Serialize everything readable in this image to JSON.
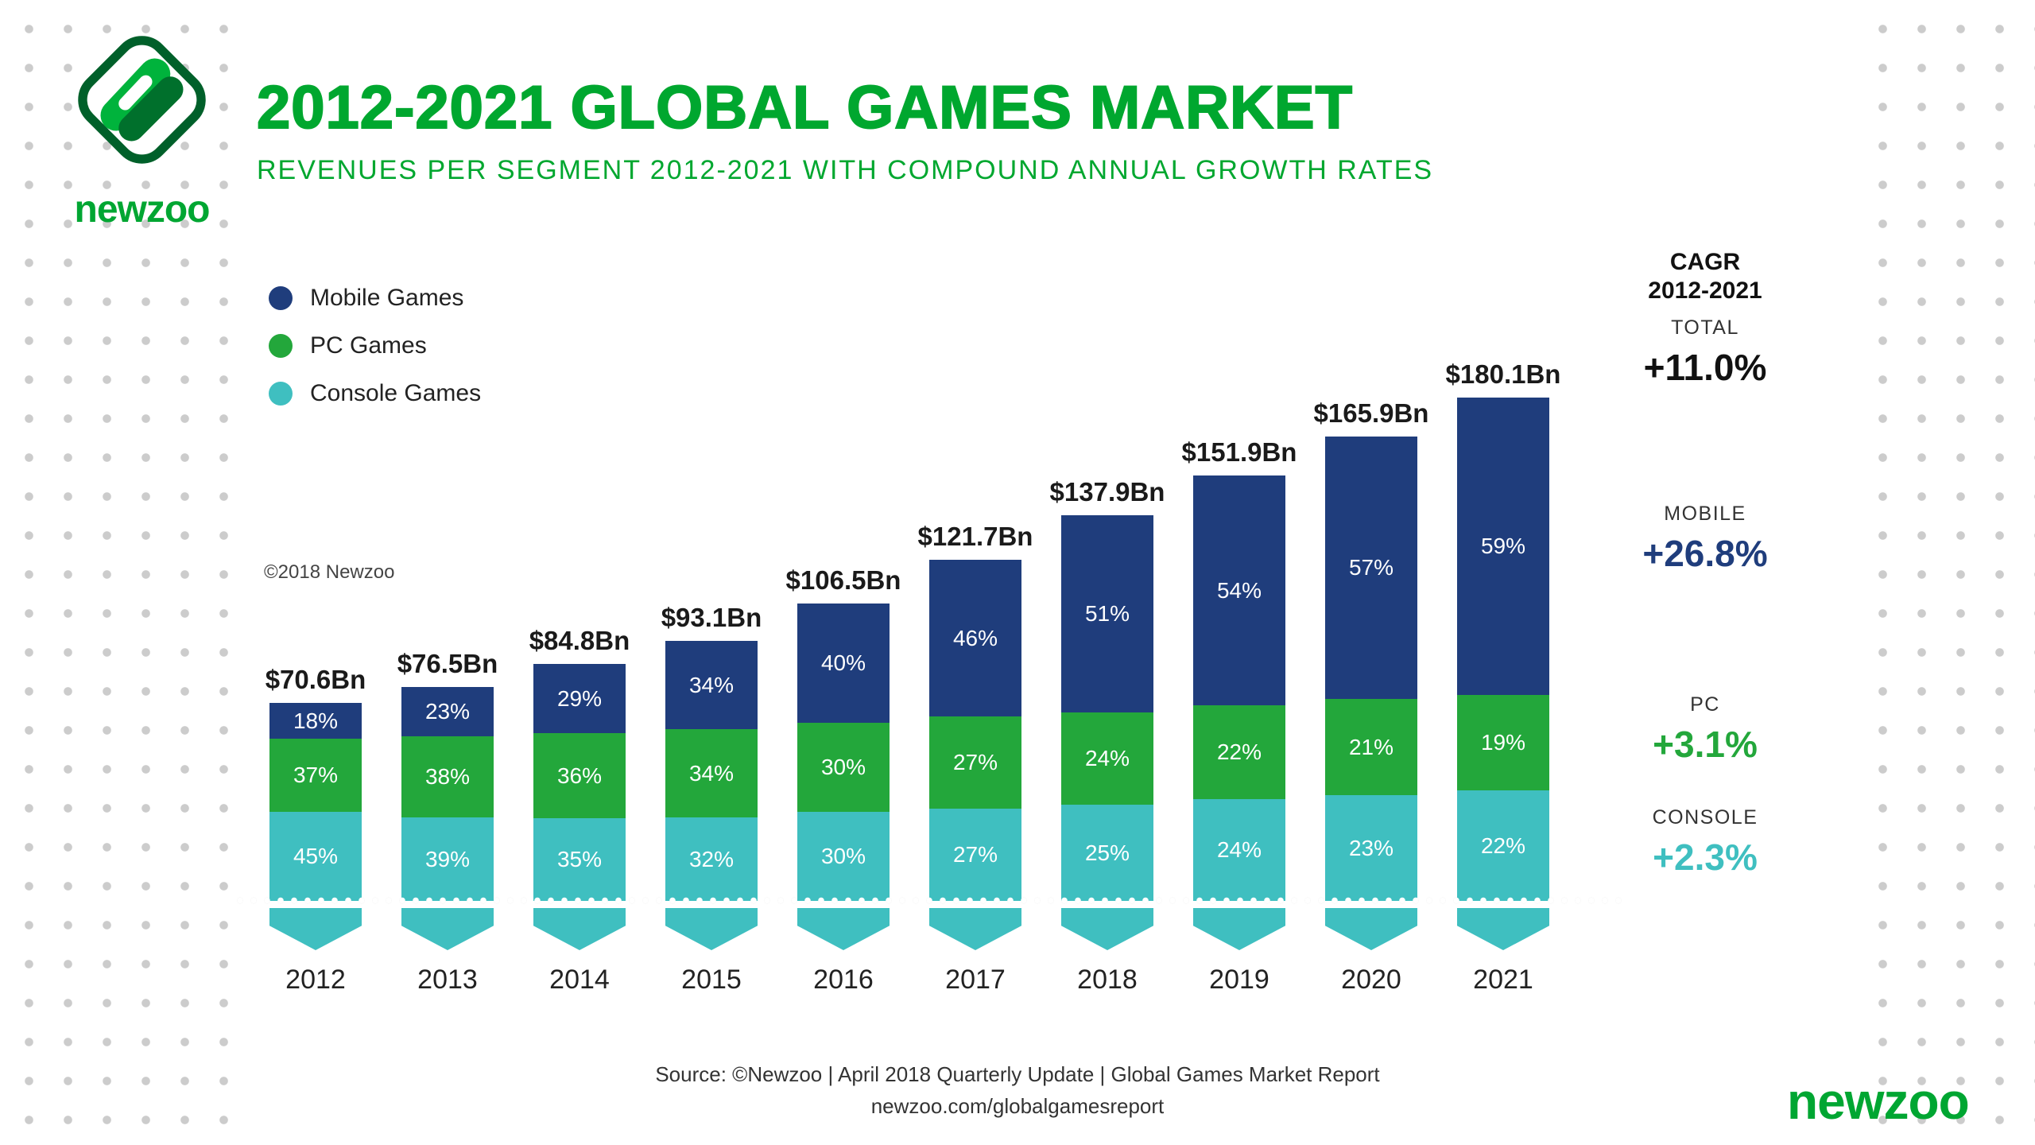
{
  "header": {
    "title": "2012-2021 GLOBAL GAMES MARKET",
    "subtitle": "REVENUES PER SEGMENT 2012-2021 WITH COMPOUND ANNUAL GROWTH RATES",
    "logo_word": "newzoo"
  },
  "legend": [
    {
      "label": "Mobile Games",
      "color": "#1F3D7C"
    },
    {
      "label": "PC Games",
      "color": "#23A73B"
    },
    {
      "label": "Console Games",
      "color": "#3FBFC0"
    }
  ],
  "copyright": "©2018 Newzoo",
  "chart_data": {
    "type": "bar",
    "stacked": true,
    "x_axis": "year",
    "unit": "USD Bn",
    "categories": [
      "2012",
      "2013",
      "2014",
      "2015",
      "2016",
      "2017",
      "2018",
      "2019",
      "2020",
      "2021"
    ],
    "totals_bn": [
      70.6,
      76.5,
      84.8,
      93.1,
      106.5,
      121.7,
      137.9,
      151.9,
      165.9,
      180.1
    ],
    "totals_label": [
      "$70.6Bn",
      "$76.5Bn",
      "$84.8Bn",
      "$93.1Bn",
      "$106.5Bn",
      "$121.7Bn",
      "$137.9Bn",
      "$151.9Bn",
      "$165.9Bn",
      "$180.1Bn"
    ],
    "series": [
      {
        "name": "Console Games",
        "color": "#3FBFC0",
        "pct": [
          45,
          39,
          35,
          32,
          30,
          27,
          25,
          24,
          23,
          22
        ]
      },
      {
        "name": "PC Games",
        "color": "#23A73B",
        "pct": [
          37,
          38,
          36,
          34,
          30,
          27,
          24,
          22,
          21,
          19
        ]
      },
      {
        "name": "Mobile Games",
        "color": "#1F3D7C",
        "pct": [
          18,
          23,
          29,
          34,
          40,
          46,
          51,
          54,
          57,
          59
        ]
      }
    ],
    "legend_position": "upper-left",
    "grid": false
  },
  "cagr": {
    "heading_line1": "CAGR",
    "heading_line2": "2012-2021",
    "items": [
      {
        "key": "total",
        "label": "TOTAL",
        "value": "+11.0%",
        "color": "#111111"
      },
      {
        "key": "mobile",
        "label": "MOBILE",
        "value": "+26.8%",
        "color": "#1F3D7C"
      },
      {
        "key": "pc",
        "label": "PC",
        "value": "+3.1%",
        "color": "#23A73B"
      },
      {
        "key": "console",
        "label": "CONSOLE",
        "value": "+2.3%",
        "color": "#3FBFC0"
      }
    ]
  },
  "footer": {
    "source_line": "Source: ©Newzoo | April 2018 Quarterly Update | Global Games Market Report",
    "url": "newzoo.com/globalgamesreport",
    "brand": "newzoo"
  }
}
